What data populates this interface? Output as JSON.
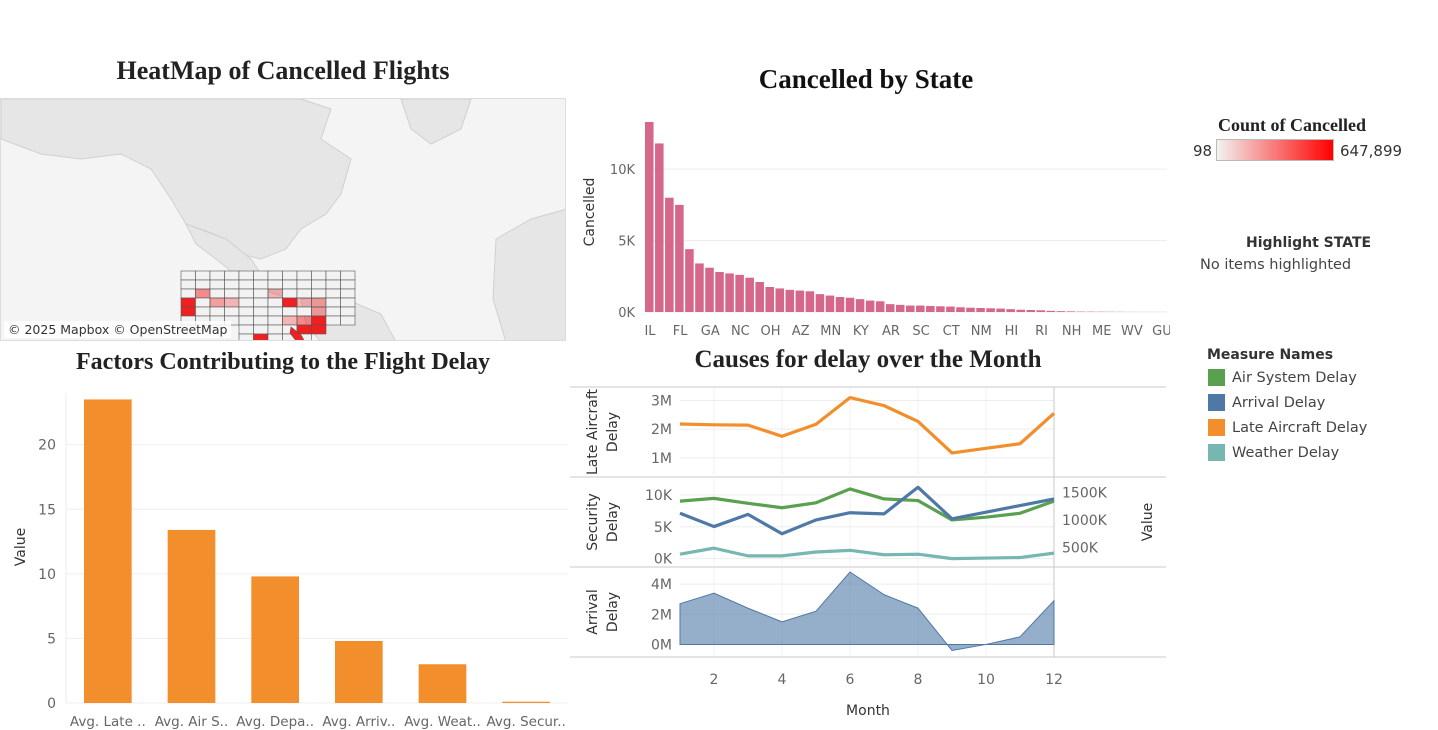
{
  "titles": {
    "map": "HeatMap of Cancelled Flights",
    "state": "Cancelled by State",
    "factors": "Factors Contributing to the Flight Delay",
    "month": "Causes for delay over the Month"
  },
  "map": {
    "credit": "© 2025 Mapbox © OpenStreetMap",
    "highlight_color": "#f02020"
  },
  "legend_count": {
    "title": "Count of Cancelled",
    "min_label": "98",
    "max_label": "647,899",
    "min_color": "#f2f2f2",
    "max_color": "#ff0000"
  },
  "highlight": {
    "title": "Highlight STATE",
    "text": "No items highlighted"
  },
  "measure_legend": {
    "title": "Measure Names",
    "items": [
      {
        "label": "Air System Delay",
        "color": "#59a14f"
      },
      {
        "label": "Arrival Delay",
        "color": "#4e79a7"
      },
      {
        "label": "Late Aircraft Delay",
        "color": "#f28e2b"
      },
      {
        "label": "Weather Delay",
        "color": "#76b7b2"
      }
    ]
  },
  "chart_data": [
    {
      "type": "bar",
      "name": "cancelled-by-state",
      "title": "Cancelled by State",
      "ylabel": "Cancelled",
      "xlabel": "",
      "color": "#d4678a",
      "ylim": [
        0,
        14000
      ],
      "yticks": [
        0,
        5000,
        10000
      ],
      "ytick_labels": [
        "0K",
        "5K",
        "10K"
      ],
      "tick_labels": [
        "IL",
        "FL",
        "GA",
        "NC",
        "OH",
        "AZ",
        "MN",
        "KY",
        "AR",
        "SC",
        "CT",
        "NM",
        "HI",
        "RI",
        "NH",
        "ME",
        "WV",
        "GU"
      ],
      "values": [
        13300,
        11800,
        8000,
        7500,
        4400,
        3400,
        3100,
        2800,
        2700,
        2600,
        2400,
        2100,
        1750,
        1650,
        1550,
        1500,
        1450,
        1250,
        1150,
        1050,
        1000,
        900,
        800,
        750,
        550,
        500,
        450,
        450,
        420,
        400,
        380,
        330,
        300,
        280,
        260,
        240,
        200,
        160,
        140,
        120,
        80,
        60,
        45,
        30,
        25,
        20,
        15,
        10,
        6,
        5,
        3,
        2
      ]
    },
    {
      "type": "bar",
      "name": "delay-factors",
      "title": "Factors Contributing to the Flight Delay",
      "ylabel": "Value",
      "xlabel": "",
      "color": "#f28e2b",
      "ylim": [
        0,
        24
      ],
      "yticks": [
        0,
        5,
        10,
        15,
        20
      ],
      "categories": [
        "Avg. Late ..",
        "Avg. Air S..",
        "Avg. Depa..",
        "Avg. Arriv..",
        "Avg. Weat..",
        "Avg. Secur.."
      ],
      "values": [
        23.5,
        13.4,
        9.8,
        4.8,
        3.0,
        0.1
      ]
    },
    {
      "type": "line",
      "name": "late-aircraft-delay",
      "ylabel": "Late Aircraft Delay",
      "x": [
        1,
        2,
        3,
        4,
        5,
        6,
        7,
        8,
        9,
        10,
        11,
        12
      ],
      "ylim": [
        400000,
        3400000
      ],
      "yticks": [
        1000000,
        2000000,
        3000000
      ],
      "ytick_labels": [
        "1M",
        "2M",
        "3M"
      ],
      "series": [
        {
          "name": "Late Aircraft Delay",
          "color": "#f28e2b",
          "values": [
            2180000,
            2150000,
            2140000,
            1750000,
            2170000,
            3100000,
            2820000,
            2270000,
            1170000,
            1330000,
            1490000,
            2550000
          ]
        }
      ]
    },
    {
      "type": "line",
      "name": "security-and-value",
      "ylabel": "Security Delay",
      "ylabel_right": "Value",
      "x": [
        1,
        2,
        3,
        4,
        5,
        6,
        7,
        8,
        9,
        10,
        11,
        12
      ],
      "ylim": [
        -1000,
        12500
      ],
      "yticks": [
        0,
        5000,
        10000
      ],
      "ytick_labels": [
        "0K",
        "5K",
        "10K"
      ],
      "ylim_right": [
        185000,
        1740000
      ],
      "yticks_right": [
        500000,
        1000000,
        1500000
      ],
      "ytick_labels_right": [
        "500K",
        "1000K",
        "1500K"
      ],
      "series": [
        {
          "name": "Air System Delay",
          "axis": "right",
          "color": "#59a14f",
          "values": [
            1340000,
            1390000,
            1300000,
            1220000,
            1310000,
            1560000,
            1380000,
            1350000,
            1000000,
            1050000,
            1120000,
            1340000
          ]
        },
        {
          "name": "Arrival Delay",
          "axis": "right",
          "color": "#4e79a7",
          "values": [
            1120000,
            880000,
            1100000,
            750000,
            1000000,
            1130000,
            1110000,
            1590000,
            1020000,
            1140000,
            1260000,
            1380000
          ]
        },
        {
          "name": "Weather Delay",
          "axis": "right",
          "color": "#76b7b2",
          "values": [
            380000,
            490000,
            350000,
            350000,
            420000,
            450000,
            370000,
            380000,
            300000,
            310000,
            320000,
            400000
          ]
        }
      ]
    },
    {
      "type": "area",
      "name": "arrival-delay",
      "ylabel": "Arrival Delay",
      "xlabel": "Month",
      "x": [
        1,
        2,
        3,
        4,
        5,
        6,
        7,
        8,
        9,
        10,
        11,
        12
      ],
      "ylim": [
        -700000,
        5000000
      ],
      "yticks": [
        0,
        2000000,
        4000000
      ],
      "ytick_labels": [
        "0M",
        "2M",
        "4M"
      ],
      "xticks": [
        2,
        4,
        6,
        8,
        10,
        12
      ],
      "series": [
        {
          "name": "Arrival Delay",
          "color": "#4e79a7",
          "values": [
            2700000,
            3400000,
            2400000,
            1500000,
            2200000,
            4800000,
            3300000,
            2400000,
            -400000,
            0,
            500000,
            2900000
          ]
        }
      ]
    }
  ]
}
